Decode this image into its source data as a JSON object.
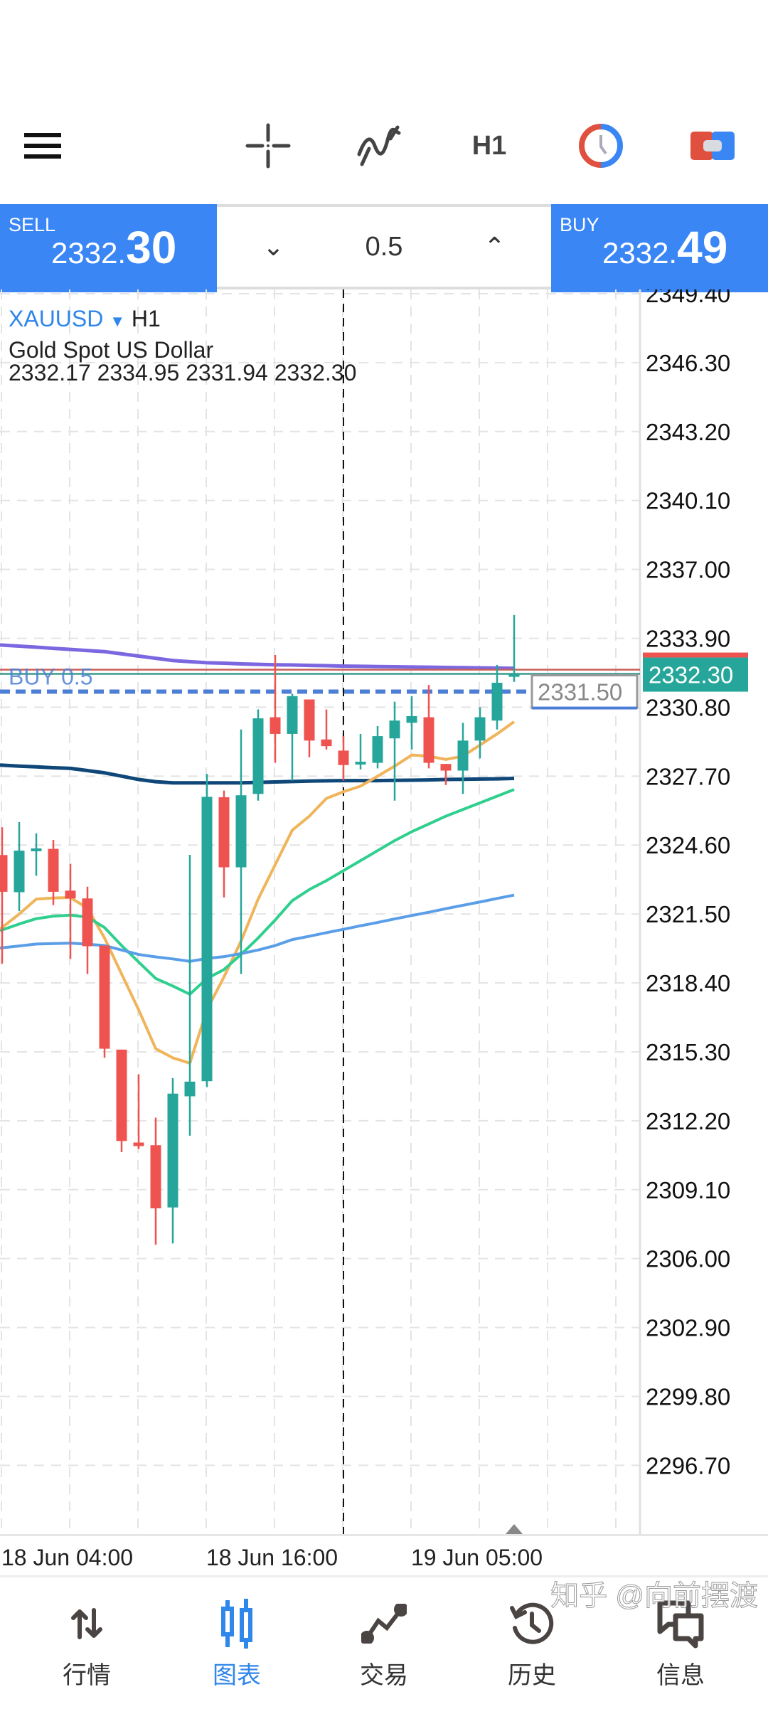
{
  "toolbar": {
    "timeframe": "H1",
    "icons": [
      "menu-icon",
      "crosshair-icon",
      "indicators-icon",
      "timeframe-h1",
      "clock-icon",
      "trade-icon"
    ]
  },
  "tradebar": {
    "sell_label": "SELL",
    "sell_price_main": "2332.",
    "sell_price_big": "30",
    "buy_label": "BUY",
    "buy_price_main": "2332.",
    "buy_price_big": "49",
    "lot": "0.5",
    "decrease_icon": "chevron-down",
    "increase_icon": "chevron-up"
  },
  "info": {
    "symbol": "XAUUSD",
    "timeframe": "H1",
    "description": "Gold Spot US Dollar",
    "ohlc": "2332.17 2334.95 2331.94 2332.30"
  },
  "colors": {
    "accent": "#3a86f5",
    "bull": "#26a69a",
    "bear": "#ef5350",
    "ask_line": "#c9605a",
    "bid_line": "#3a9a8e",
    "order_line": "#4d7fd6"
  },
  "chart_data": {
    "type": "candlestick",
    "symbol": "XAUUSD",
    "timeframe": "H1",
    "ylim": [
      2295.0,
      2349.6
    ],
    "y_ticks": [
      "2349.40",
      "2346.30",
      "2343.20",
      "2340.10",
      "2337.00",
      "2333.90",
      "2330.80",
      "2327.70",
      "2324.60",
      "2321.50",
      "2318.40",
      "2315.30",
      "2312.20",
      "2309.10",
      "2306.00",
      "2302.90",
      "2299.80",
      "2296.70"
    ],
    "x_labels": [
      {
        "index": 0,
        "label": "18 Jun 04:00"
      },
      {
        "index": 12,
        "label": "18 Jun 16:00"
      },
      {
        "index": 24,
        "label": "19 Jun 05:00"
      }
    ],
    "candles": [
      [
        2324.15,
        2325.4,
        2319.27,
        2322.5
      ],
      [
        2322.48,
        2325.63,
        2321.63,
        2324.35
      ],
      [
        2324.35,
        2325.13,
        2323.22,
        2324.45
      ],
      [
        2324.43,
        2324.83,
        2321.9,
        2322.5
      ],
      [
        2322.55,
        2323.76,
        2319.48,
        2322.2
      ],
      [
        2322.2,
        2322.73,
        2318.8,
        2320.05
      ],
      [
        2320.08,
        2320.08,
        2315.03,
        2315.44
      ],
      [
        2315.4,
        2315.4,
        2310.79,
        2311.29
      ],
      [
        2311.22,
        2314.29,
        2310.93,
        2311.06
      ],
      [
        2311.1,
        2312.34,
        2306.62,
        2308.26
      ],
      [
        2308.3,
        2314.12,
        2306.68,
        2313.42
      ],
      [
        2313.3,
        2324.16,
        2311.53,
        2313.96
      ],
      [
        2313.98,
        2327.8,
        2313.71,
        2326.77
      ],
      [
        2326.75,
        2327.05,
        2322.24,
        2323.6
      ],
      [
        2323.6,
        2329.8,
        2318.8,
        2326.84
      ],
      [
        2326.9,
        2330.7,
        2326.6,
        2330.3
      ],
      [
        2330.35,
        2333.15,
        2328.3,
        2329.6
      ],
      [
        2329.6,
        2331.4,
        2327.5,
        2331.3
      ],
      [
        2331.15,
        2331.15,
        2328.55,
        2329.3
      ],
      [
        2329.35,
        2330.7,
        2328.9,
        2329.05
      ],
      [
        2328.85,
        2329.5,
        2327.5,
        2328.2
      ],
      [
        2328.25,
        2329.6,
        2328.0,
        2328.35
      ],
      [
        2328.3,
        2329.95,
        2328.05,
        2329.5
      ],
      [
        2329.4,
        2331.05,
        2326.6,
        2330.2
      ],
      [
        2330.1,
        2331.3,
        2328.9,
        2330.4
      ],
      [
        2330.35,
        2331.8,
        2328.05,
        2328.3
      ],
      [
        2328.25,
        2328.25,
        2327.3,
        2327.95
      ],
      [
        2327.95,
        2330.1,
        2326.9,
        2329.3
      ],
      [
        2329.3,
        2330.8,
        2328.5,
        2330.35
      ],
      [
        2330.2,
        2332.7,
        2329.8,
        2331.9
      ],
      [
        2332.17,
        2334.95,
        2331.94,
        2332.3
      ]
    ],
    "moving_averages": [
      {
        "name": "ma-purple",
        "color": "#7b68e0",
        "values": [
          2333.6,
          2333.55,
          2333.5,
          2333.45,
          2333.4,
          2333.35,
          2333.3,
          2333.2,
          2333.1,
          2333.0,
          2332.9,
          2332.85,
          2332.8,
          2332.78,
          2332.75,
          2332.73,
          2332.71,
          2332.7,
          2332.68,
          2332.67,
          2332.65,
          2332.64,
          2332.63,
          2332.62,
          2332.61,
          2332.6,
          2332.59,
          2332.58,
          2332.57,
          2332.56,
          2332.55
        ]
      },
      {
        "name": "ma-navy",
        "color": "#0e4778",
        "values": [
          2328.2,
          2328.15,
          2328.12,
          2328.08,
          2328.05,
          2327.95,
          2327.85,
          2327.7,
          2327.55,
          2327.45,
          2327.4,
          2327.4,
          2327.4,
          2327.4,
          2327.4,
          2327.42,
          2327.44,
          2327.46,
          2327.48,
          2327.49,
          2327.5,
          2327.5,
          2327.5,
          2327.51,
          2327.52,
          2327.53,
          2327.55,
          2327.56,
          2327.57,
          2327.58,
          2327.6
        ]
      },
      {
        "name": "ma-orange",
        "color": "#f0b45a",
        "values": [
          2320.82,
          2321.5,
          2322.17,
          2322.22,
          2322.24,
          2321.76,
          2320.42,
          2318.8,
          2317.19,
          2315.44,
          2315.03,
          2314.79,
          2317.19,
          2318.67,
          2320.28,
          2322.17,
          2323.72,
          2325.27,
          2325.9,
          2326.7,
          2327.0,
          2327.25,
          2327.7,
          2328.15,
          2328.65,
          2328.6,
          2328.45,
          2328.6,
          2329.1,
          2329.6,
          2330.15
        ]
      },
      {
        "name": "ma-green",
        "color": "#2fcf8e",
        "values": [
          2320.75,
          2321.05,
          2321.29,
          2321.4,
          2321.45,
          2321.36,
          2320.89,
          2320.08,
          2319.34,
          2318.6,
          2318.26,
          2317.89,
          2318.6,
          2319.0,
          2319.68,
          2320.42,
          2321.23,
          2322.1,
          2322.6,
          2323.0,
          2323.45,
          2323.9,
          2324.35,
          2324.8,
          2325.2,
          2325.55,
          2325.9,
          2326.2,
          2326.5,
          2326.8,
          2327.1
        ]
      },
      {
        "name": "ma-blue",
        "color": "#5a9ee8",
        "values": [
          2319.97,
          2320.06,
          2320.15,
          2320.17,
          2320.19,
          2320.14,
          2320.08,
          2319.88,
          2319.68,
          2319.57,
          2319.48,
          2319.37,
          2319.5,
          2319.58,
          2319.72,
          2319.88,
          2320.08,
          2320.35,
          2320.5,
          2320.66,
          2320.81,
          2320.97,
          2321.12,
          2321.28,
          2321.43,
          2321.58,
          2321.74,
          2321.89,
          2322.04,
          2322.2,
          2322.35
        ]
      }
    ],
    "levels": {
      "ask": 2332.49,
      "bid": 2332.3,
      "bid_label": "2332.30",
      "order": 2331.5,
      "order_label": "2331.50",
      "order_text": "BUY 0.5"
    },
    "crosshair_index": 20
  },
  "nav": [
    {
      "label": "行情",
      "icon": "quotes-icon"
    },
    {
      "label": "图表",
      "icon": "chart-icon",
      "active": true
    },
    {
      "label": "交易",
      "icon": "trade-icon"
    },
    {
      "label": "历史",
      "icon": "history-icon"
    },
    {
      "label": "信息",
      "icon": "messages-icon"
    }
  ],
  "watermark": "知乎 @向前摆渡"
}
